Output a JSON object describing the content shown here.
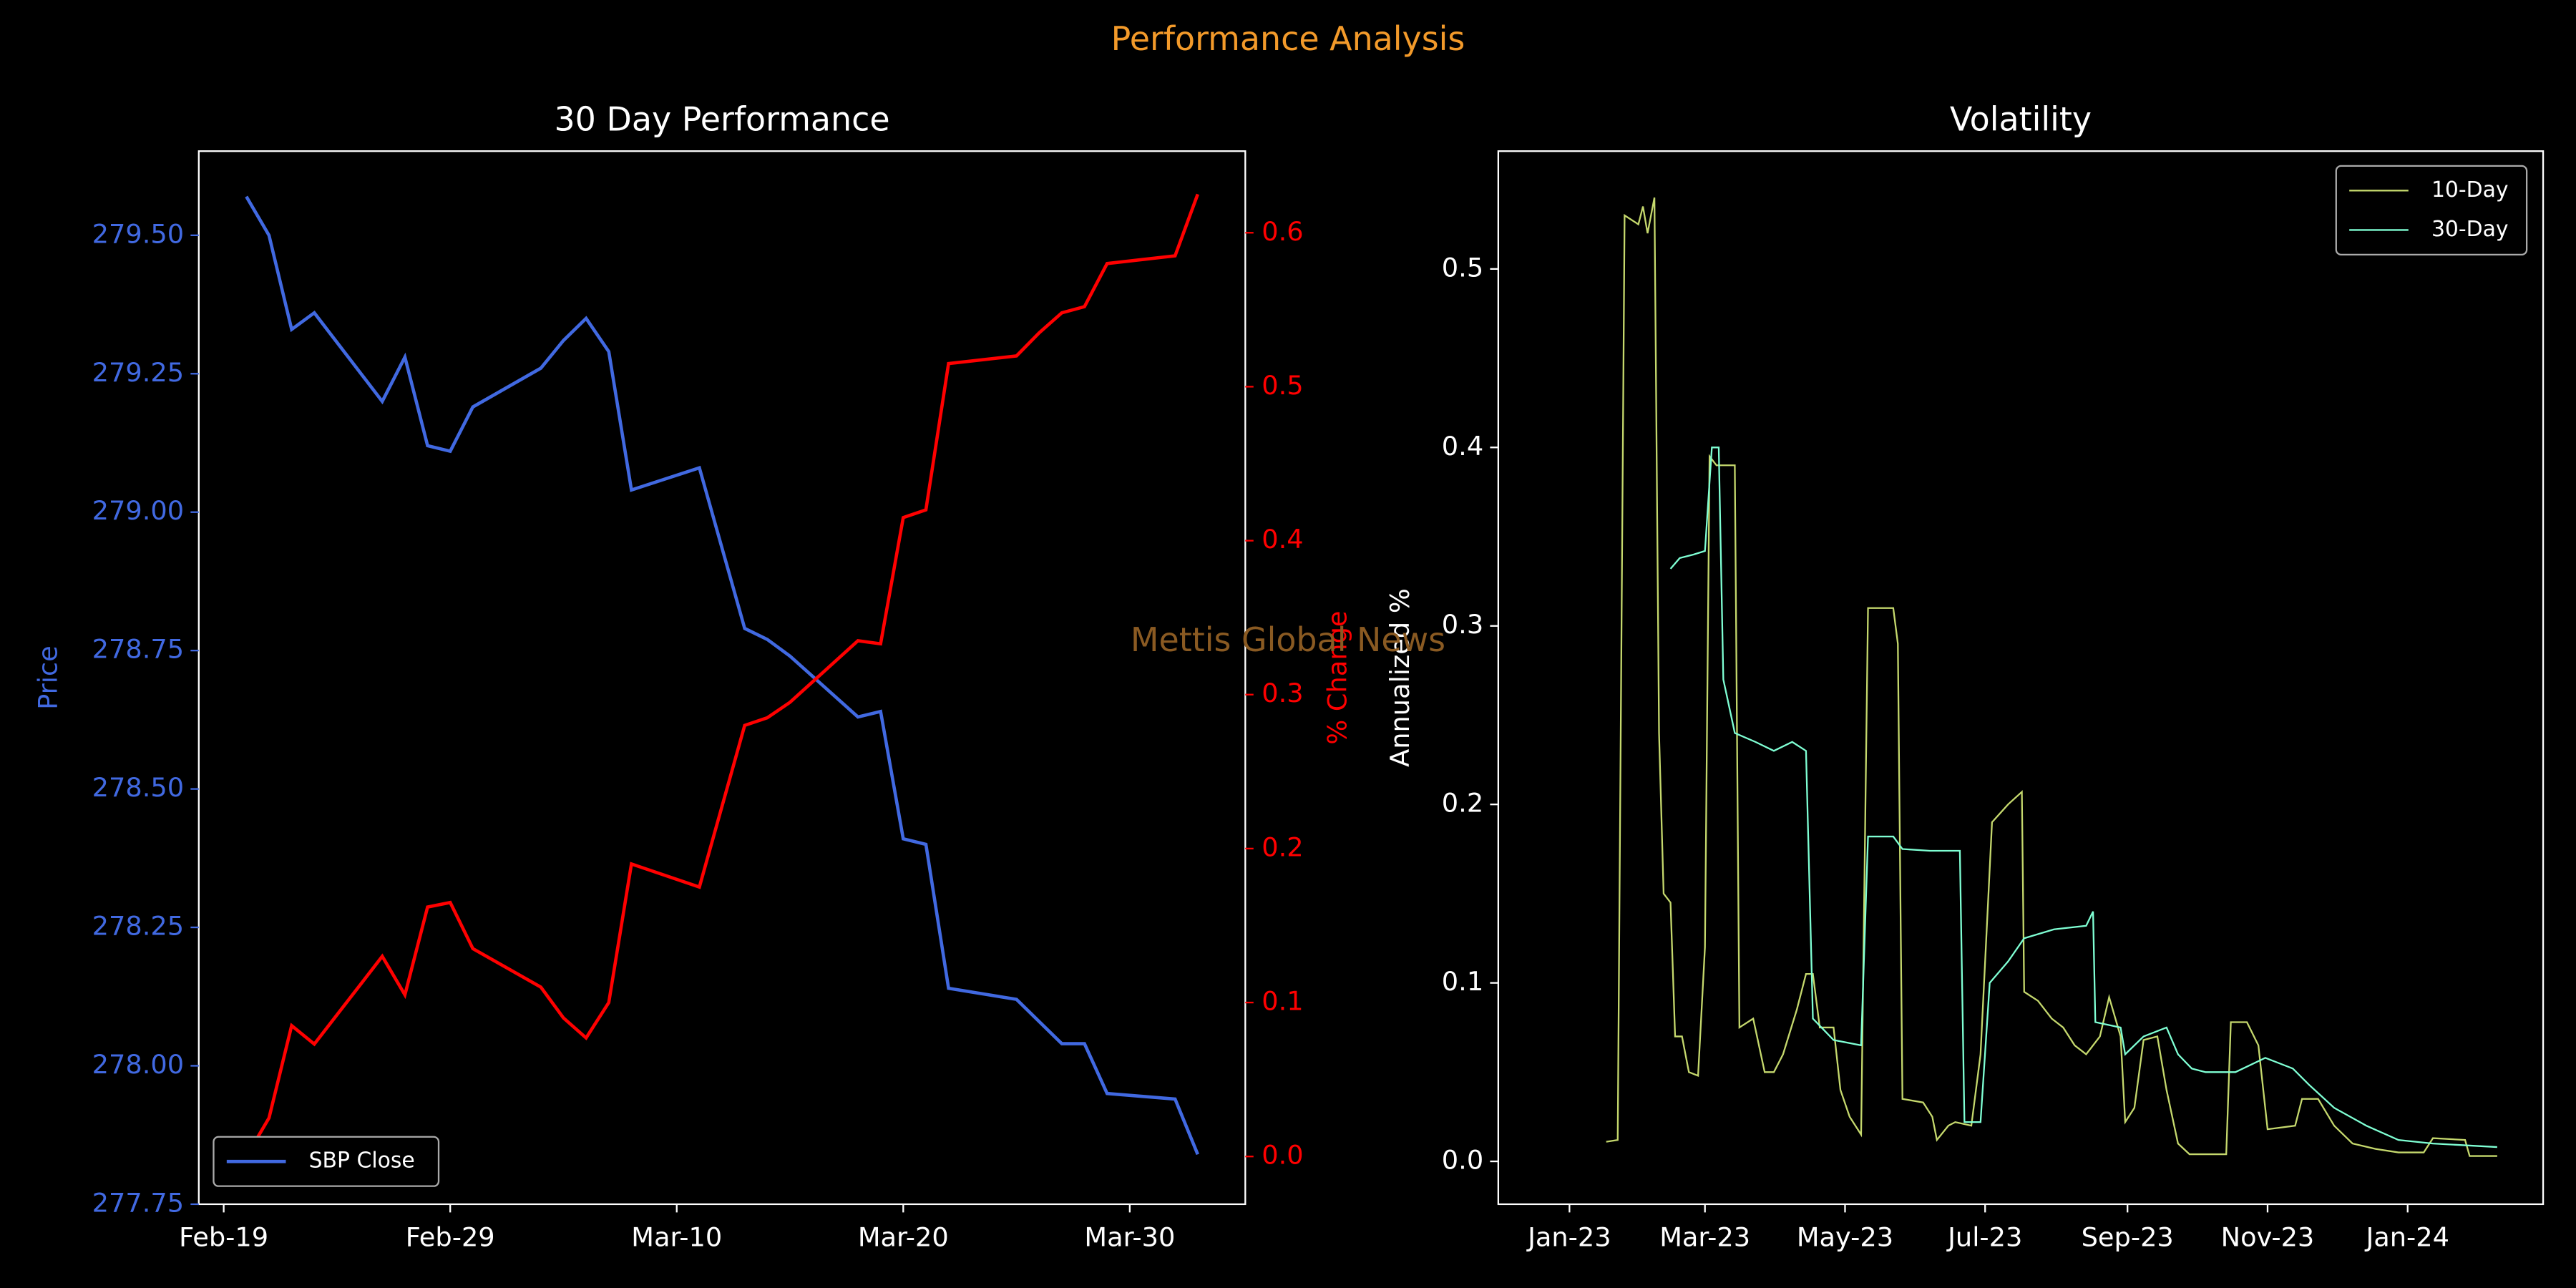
{
  "title": "Performance Analysis",
  "watermark": "Mettis Global News",
  "chart_data": [
    {
      "type": "line",
      "title": "30 Day Performance",
      "x": [
        "Feb-20",
        "Feb-21",
        "Feb-22",
        "Feb-23",
        "Feb-26",
        "Feb-27",
        "Feb-28",
        "Feb-29",
        "Mar-1",
        "Mar-4",
        "Mar-5",
        "Mar-6",
        "Mar-7",
        "Mar-8",
        "Mar-11",
        "Mar-13",
        "Mar-14",
        "Mar-15",
        "Mar-18",
        "Mar-19",
        "Mar-20",
        "Mar-21",
        "Mar-22",
        "Mar-25",
        "Mar-26",
        "Mar-27",
        "Mar-28",
        "Mar-29",
        "Apr-1",
        "Apr-2"
      ],
      "series": [
        {
          "name": "SBP Close",
          "color": "#4169e1",
          "values": [
            279.57,
            279.5,
            279.33,
            279.36,
            279.2,
            279.28,
            279.12,
            279.11,
            279.19,
            279.26,
            279.31,
            279.35,
            279.29,
            279.04,
            279.08,
            278.79,
            278.77,
            278.74,
            278.63,
            278.64,
            278.41,
            278.4,
            278.14,
            278.12,
            278.08,
            278.04,
            278.04,
            277.95,
            277.94,
            277.84
          ]
        },
        {
          "color": "#ff0000",
          "axis": "y2",
          "values": [
            0.0,
            0.025,
            0.085,
            0.073,
            0.13,
            0.105,
            0.162,
            0.165,
            0.135,
            0.11,
            0.09,
            0.077,
            0.1,
            0.19,
            0.175,
            0.28,
            0.285,
            0.295,
            0.335,
            0.333,
            0.415,
            0.42,
            0.515,
            0.52,
            0.535,
            0.548,
            0.552,
            0.58,
            0.585,
            0.625
          ]
        }
      ],
      "xticks": [
        "Feb-19",
        "Feb-29",
        "Mar-10",
        "Mar-20",
        "Mar-30"
      ],
      "ylabel": "Price",
      "y2label": "% Change",
      "ylim": [
        277.75,
        279.652
      ],
      "yticks": [
        277.75,
        {
          "value": 278.0,
          "label": "278.00"
        },
        278.25,
        {
          "value": 278.5,
          "label": "278.50"
        },
        278.75,
        {
          "value": 279.0,
          "label": "279.00"
        },
        279.25,
        {
          "value": 279.5,
          "label": "279.50"
        }
      ],
      "y2lim": [
        -0.031,
        0.653
      ],
      "y2ticks": [
        {
          "value": 0,
          "label": "0.0"
        },
        0.1,
        0.2,
        0.3,
        0.4,
        0.5,
        0.6
      ],
      "legend": "lower left"
    },
    {
      "type": "line",
      "title": "Volatility",
      "ylabel": "Annualized %",
      "series": [
        {
          "name": "10-Day",
          "color": "#c5d86d",
          "x": [
            16,
            21,
            24,
            30,
            32,
            34,
            37,
            39,
            41,
            44,
            46,
            49,
            52,
            56,
            59,
            61,
            64,
            72,
            74,
            80,
            85,
            89,
            93,
            99,
            103,
            106,
            109,
            115,
            118,
            122,
            127,
            130,
            141,
            143,
            145,
            154,
            158,
            160,
            165,
            168,
            175,
            179,
            184,
            191,
            197,
            198,
            204,
            210,
            215,
            220,
            225,
            231,
            235,
            240,
            242,
            246,
            250,
            256,
            260,
            265,
            270,
            286,
            288,
            295,
            300,
            304,
            316,
            319,
            326,
            333,
            341,
            351,
            361,
            372,
            376,
            390,
            392,
            404
          ],
          "values": [
            0.011,
            0.012,
            0.53,
            0.525,
            0.535,
            0.52,
            0.54,
            0.24,
            0.15,
            0.145,
            0.07,
            0.07,
            0.05,
            0.048,
            0.12,
            0.395,
            0.39,
            0.39,
            0.075,
            0.08,
            0.05,
            0.05,
            0.06,
            0.085,
            0.105,
            0.105,
            0.075,
            0.075,
            0.04,
            0.025,
            0.015,
            0.31,
            0.31,
            0.29,
            0.035,
            0.033,
            0.025,
            0.012,
            0.02,
            0.022,
            0.02,
            0.06,
            0.19,
            0.2,
            0.207,
            0.095,
            0.09,
            0.08,
            0.075,
            0.065,
            0.06,
            0.07,
            0.092,
            0.07,
            0.022,
            0.03,
            0.068,
            0.07,
            0.04,
            0.01,
            0.004,
            0.004,
            0.078,
            0.078,
            0.065,
            0.018,
            0.02,
            0.035,
            0.035,
            0.02,
            0.01,
            0.007,
            0.005,
            0.005,
            0.013,
            0.012,
            0.003,
            0.003
          ]
        },
        {
          "name": "30-Day",
          "color": "#7fffd4",
          "x": [
            44,
            48,
            54,
            59,
            62,
            65,
            67,
            72,
            81,
            89,
            97,
            103,
            106,
            115,
            127,
            130,
            141,
            145,
            157,
            170,
            172,
            179,
            183,
            191,
            198,
            211,
            225,
            228,
            229,
            240,
            242,
            250,
            260,
            265,
            271,
            277,
            290,
            303,
            315,
            322,
            333,
            347,
            361,
            376,
            404
          ],
          "values": [
            0.332,
            0.338,
            0.34,
            0.342,
            0.4,
            0.4,
            0.27,
            0.24,
            0.235,
            0.23,
            0.235,
            0.23,
            0.08,
            0.068,
            0.065,
            0.182,
            0.182,
            0.175,
            0.174,
            0.174,
            0.022,
            0.022,
            0.1,
            0.112,
            0.125,
            0.13,
            0.132,
            0.14,
            0.078,
            0.075,
            0.06,
            0.07,
            0.075,
            0.06,
            0.052,
            0.05,
            0.05,
            0.058,
            0.052,
            0.043,
            0.03,
            0.02,
            0.012,
            0.01,
            0.008
          ]
        }
      ],
      "xlim": [
        -31,
        424
      ],
      "xticks": [
        {
          "value": 0,
          "label": "Jan-23"
        },
        {
          "value": 59,
          "label": "Mar-23"
        },
        {
          "value": 120,
          "label": "May-23"
        },
        {
          "value": 181,
          "label": "Jul-23"
        },
        {
          "value": 243,
          "label": "Sep-23"
        },
        {
          "value": 304,
          "label": "Nov-23"
        },
        {
          "value": 365,
          "label": "Jan-24"
        }
      ],
      "ylim": [
        -0.024,
        0.566
      ],
      "yticks": [
        {
          "value": 0,
          "label": "0.0"
        },
        0.1,
        0.2,
        0.3,
        0.4,
        0.5
      ],
      "legend": "upper right"
    }
  ]
}
